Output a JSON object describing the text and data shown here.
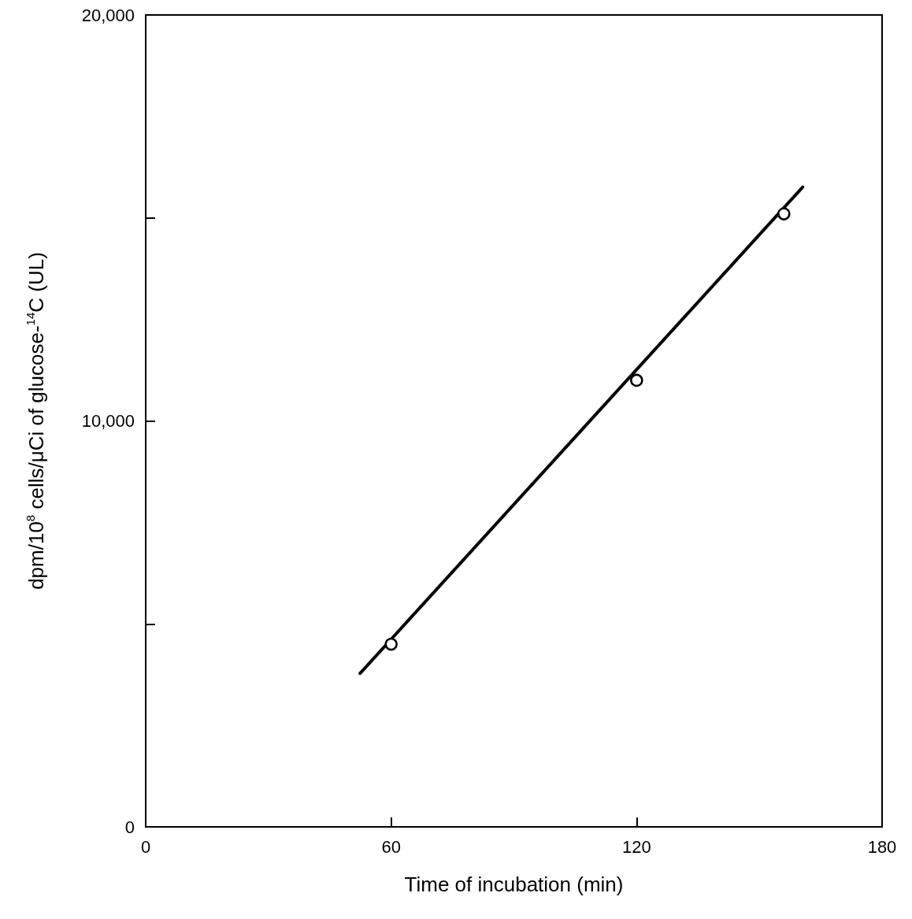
{
  "chart_data": {
    "type": "scatter",
    "xlabel": "Time of incubation (min)",
    "ylabel": "dpm/10$^{8}$ cells/μCi of glucose-$^{14}$C (UL)",
    "marker": "circle",
    "series": [
      {
        "color": "#000000",
        "x": [
          60,
          120,
          156
        ],
        "values": [
          4500,
          11000,
          15100
        ]
      },
      {
        "type": "line",
        "color": "#000000",
        "x": [
          52.4,
          160.6
        ],
        "values": [
          3780,
          15760
        ],
        "marker": "none",
        "line_style": "solid"
      }
    ],
    "xlim": [
      0,
      180
    ],
    "xticks": [
      0,
      60,
      120,
      180
    ],
    "ylim": [
      0,
      20000
    ],
    "yticks": [
      0,
      {
        "value": 5000,
        "label": null
      },
      {
        "value": 10000,
        "label": "10,000"
      },
      {
        "value": 15000,
        "label": null
      },
      {
        "value": 20000,
        "label": "20,000"
      }
    ],
    "grid": false
  }
}
